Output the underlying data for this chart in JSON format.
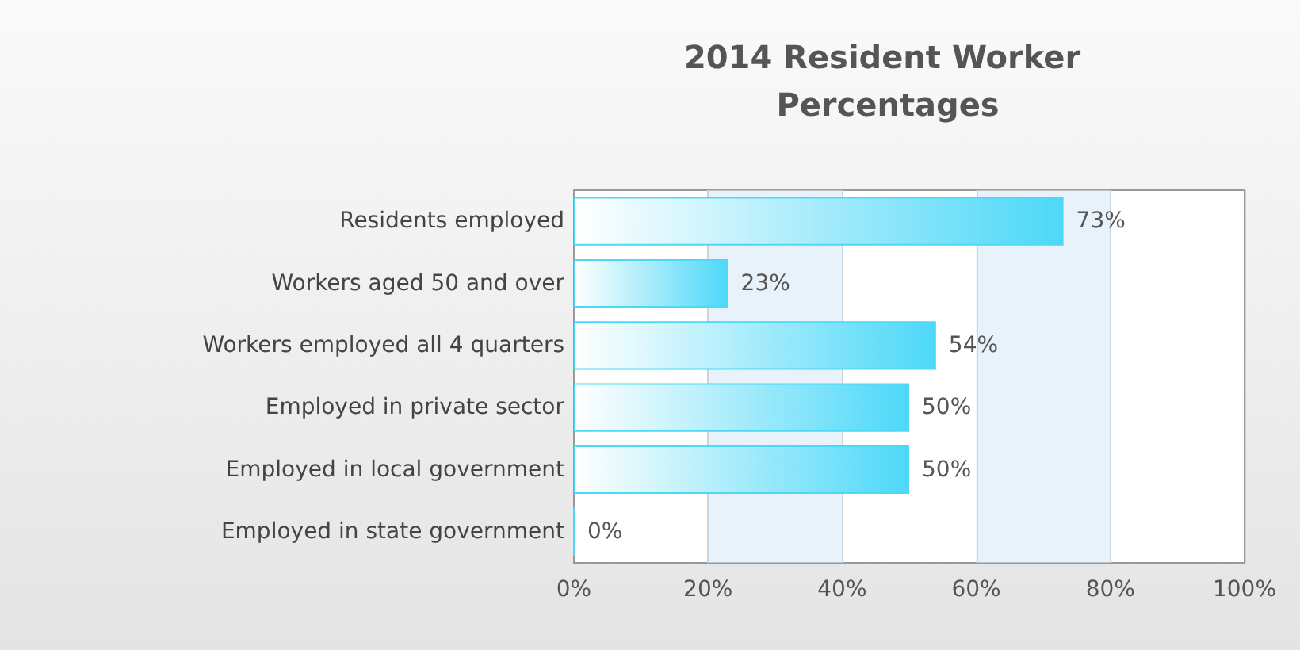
{
  "chart_data": {
    "type": "bar",
    "orientation": "horizontal",
    "title": "2014 Resident Worker Percentages",
    "categories": [
      "Residents employed",
      "Workers aged 50 and over",
      "Workers employed all 4 quarters",
      "Employed in private sector",
      "Employed in local government",
      "Employed in state government"
    ],
    "values": [
      73,
      23,
      54,
      50,
      50,
      0
    ],
    "value_labels": [
      "73%",
      "23%",
      "54%",
      "50%",
      "50%",
      "0%"
    ],
    "color": "#4dd8f8",
    "xlim": [
      0,
      100
    ],
    "xticks": [
      {
        "value": 0,
        "label": "0%"
      },
      {
        "value": 20,
        "label": "20%"
      },
      {
        "value": 40,
        "label": "40%"
      },
      {
        "value": 60,
        "label": "60%"
      },
      {
        "value": 80,
        "label": "80%"
      },
      {
        "value": 100,
        "label": "100%"
      }
    ],
    "grid": "x"
  }
}
